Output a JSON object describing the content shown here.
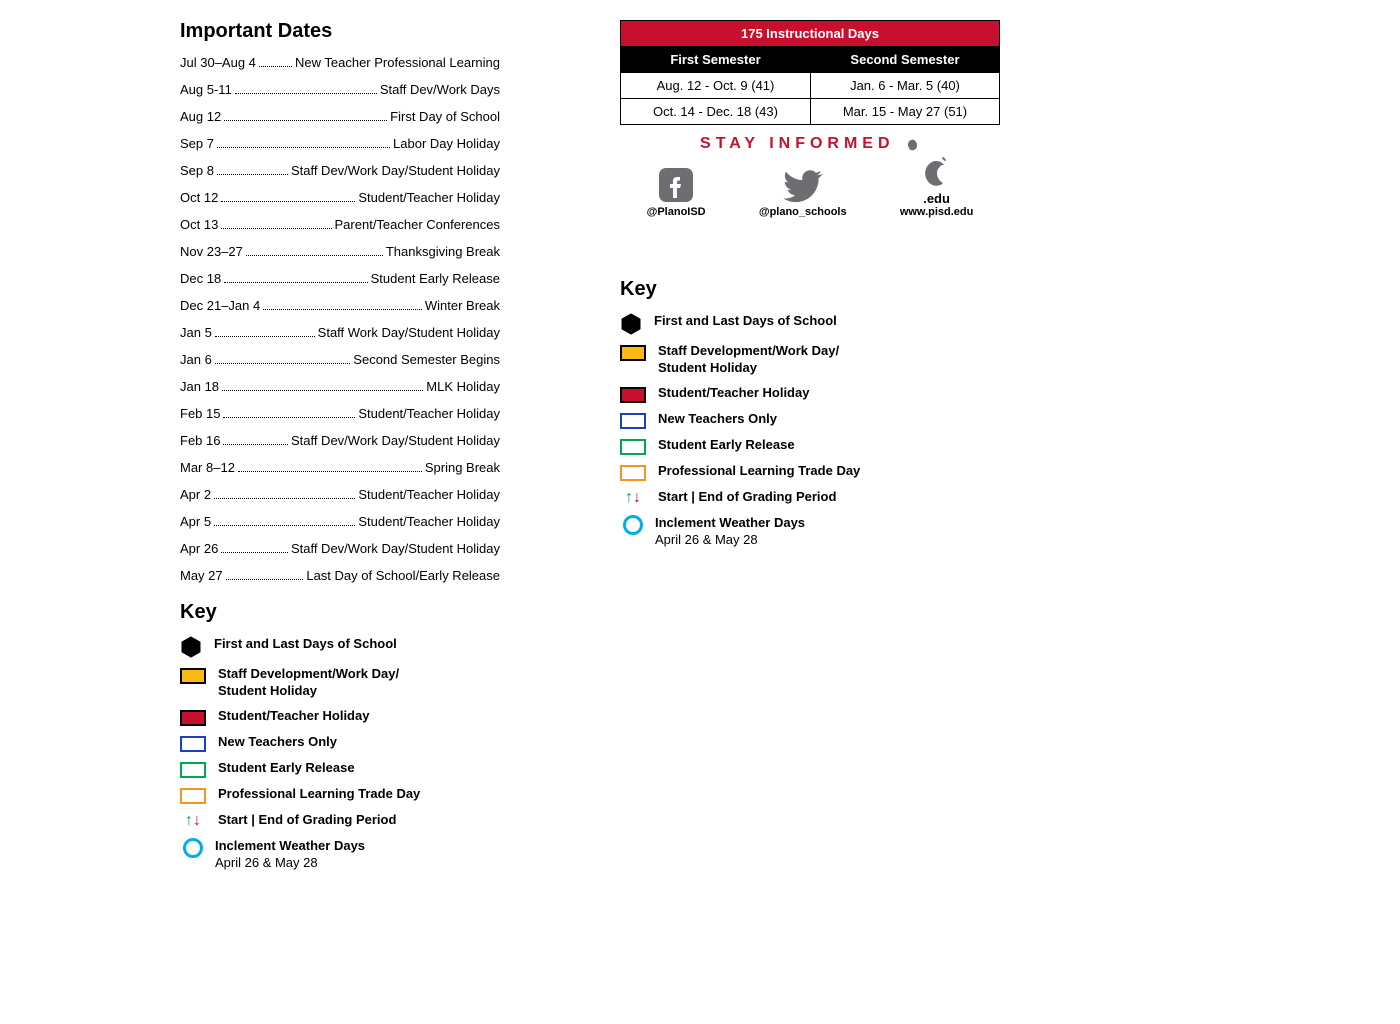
{
  "importantDates": {
    "title": "Important Dates",
    "items": [
      {
        "date": "Jul 30–Aug 4",
        "desc": "New Teacher Professional Learning"
      },
      {
        "date": "Aug 5-11",
        "desc": "Staff Dev/Work Days"
      },
      {
        "date": "Aug 12",
        "desc": "First Day of School"
      },
      {
        "date": "Sep 7",
        "desc": "Labor Day Holiday"
      },
      {
        "date": "Sep 8",
        "desc": "Staff Dev/Work Day/Student Holiday"
      },
      {
        "date": "Oct 12",
        "desc": "Student/Teacher Holiday"
      },
      {
        "date": "Oct 13",
        "desc": "Parent/Teacher Conferences"
      },
      {
        "date": "Nov 23–27",
        "desc": "Thanksgiving Break"
      },
      {
        "date": "Dec 18",
        "desc": "Student Early Release"
      },
      {
        "date": "Dec 21–Jan 4",
        "desc": "Winter Break"
      },
      {
        "date": "Jan 5",
        "desc": "Staff Work Day/Student Holiday"
      },
      {
        "date": "Jan 6",
        "desc": "Second Semester Begins"
      },
      {
        "date": "Jan 18",
        "desc": "MLK Holiday"
      },
      {
        "date": "Feb 15",
        "desc": "Student/Teacher Holiday"
      },
      {
        "date": "Feb 16",
        "desc": "Staff Dev/Work Day/Student Holiday"
      },
      {
        "date": "Mar 8–12",
        "desc": "Spring Break"
      },
      {
        "date": "Apr 2",
        "desc": "Student/Teacher Holiday"
      },
      {
        "date": "Apr 5",
        "desc": "Student/Teacher Holiday"
      },
      {
        "date": "Apr 26",
        "desc": "Staff Dev/Work Day/Student Holiday"
      },
      {
        "date": "May 27",
        "desc": "Last Day of School/Early Release"
      }
    ]
  },
  "instructional": {
    "header": "175 Instructional Days",
    "sem1Label": "First Semester",
    "sem2Label": "Second Semester",
    "rows": [
      {
        "s1": "Aug. 12 - Oct. 9 (41)",
        "s2": "Jan. 6 - Mar. 5 (40)"
      },
      {
        "s1": "Oct. 14 - Dec. 18 (43)",
        "s2": "Mar. 15 - May 27 (51)"
      }
    ],
    "colors": {
      "headerBg": "#c8102e",
      "headerText": "#ffffff",
      "subBg": "#000000",
      "subText": "#ffffff"
    }
  },
  "stayInformed": {
    "title": "STAY INFORMED",
    "social": [
      {
        "label": "@PlanoISD",
        "icon": "facebook"
      },
      {
        "label": "@plano_schools",
        "icon": "twitter"
      },
      {
        "label": "www.pisd.edu",
        "sublabel": ".edu",
        "icon": "apple"
      }
    ],
    "titleColor": "#c8102e",
    "iconColor": "#6d6e71"
  },
  "key": {
    "title": "Key",
    "items": [
      {
        "type": "hex",
        "fill": "#000000",
        "stroke": "#000000",
        "label": "First and Last Days of School"
      },
      {
        "type": "rect",
        "fill": "#fdb913",
        "stroke": "#000000",
        "label": "Staff Development/Work Day/\nStudent Holiday"
      },
      {
        "type": "rect",
        "fill": "#c8102e",
        "stroke": "#000000",
        "label": "Student/Teacher Holiday"
      },
      {
        "type": "rect",
        "fill": "#ffffff",
        "stroke": "#1d3fbb",
        "label": "New Teachers Only"
      },
      {
        "type": "rect",
        "fill": "#ffffff",
        "stroke": "#00a651",
        "label": "Student Early Release"
      },
      {
        "type": "rect",
        "fill": "#ffffff",
        "stroke": "#f7941d",
        "label": "Professional Learning Trade Day"
      },
      {
        "type": "arrows",
        "upColor": "#00a651",
        "downColor": "#c8102e",
        "label": "Start | End of Grading Period"
      },
      {
        "type": "circle",
        "stroke": "#00aeef",
        "label": "Inclement Weather Days",
        "sub": "April 26 & May 28"
      }
    ]
  }
}
